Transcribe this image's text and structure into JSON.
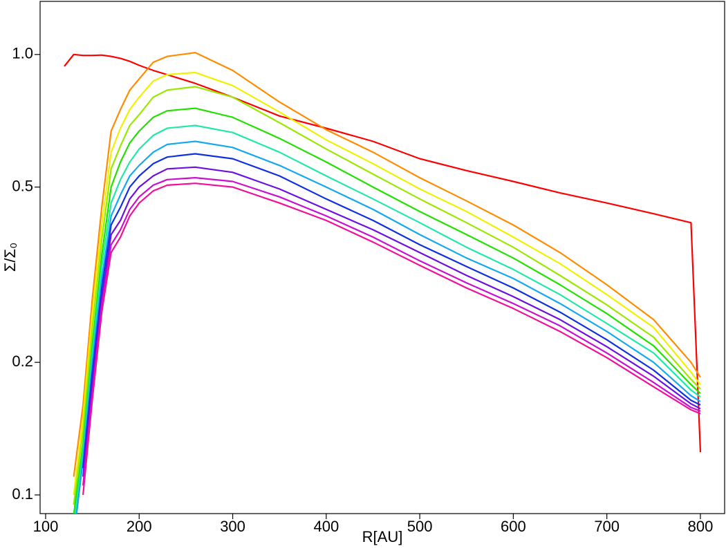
{
  "chart_data": {
    "type": "line",
    "xlabel": "R[AU]",
    "ylabel": "Σ/Σ₀",
    "ylog": true,
    "x": [
      120,
      130,
      140,
      150,
      160,
      170,
      180,
      190,
      200,
      215,
      230,
      260,
      300,
      350,
      400,
      450,
      500,
      550,
      600,
      650,
      700,
      750,
      790,
      800
    ],
    "xlim": [
      94.1,
      825.9
    ],
    "xticks": [
      100,
      200,
      300,
      400,
      500,
      600,
      700,
      800
    ],
    "ylim": [
      0.0907,
      1.32
    ],
    "yticks": [
      0.1,
      0.2,
      0.5,
      {
        "value": 1,
        "label": "1.0"
      }
    ],
    "series": [
      {
        "color": "#ff0000",
        "values": [
          0.94,
          1.0,
          0.995,
          0.995,
          0.997,
          0.99,
          0.98,
          0.965,
          0.945,
          0.92,
          0.9,
          0.86,
          0.8,
          0.725,
          0.68,
          0.635,
          0.58,
          0.545,
          0.515,
          0.485,
          0.46,
          0.435,
          0.415,
          0.125
        ]
      },
      {
        "color": "#ff8c00",
        "values": [
          null,
          0.11,
          0.16,
          0.28,
          0.45,
          0.67,
          0.75,
          0.83,
          0.88,
          0.96,
          0.99,
          1.01,
          0.92,
          0.78,
          0.675,
          0.6,
          0.525,
          0.465,
          0.41,
          0.355,
          0.3,
          0.25,
          0.2,
          0.185
        ]
      },
      {
        "color": "#f0f000",
        "values": [
          null,
          0.1,
          0.15,
          0.26,
          0.41,
          0.6,
          0.68,
          0.75,
          0.8,
          0.87,
          0.9,
          0.91,
          0.85,
          0.74,
          0.64,
          0.565,
          0.495,
          0.44,
          0.385,
          0.335,
          0.285,
          0.24,
          0.19,
          0.178
        ]
      },
      {
        "color": "#9ae800",
        "values": [
          null,
          0.095,
          0.14,
          0.24,
          0.38,
          0.55,
          0.62,
          0.69,
          0.73,
          0.8,
          0.83,
          0.845,
          0.8,
          0.7,
          0.61,
          0.535,
          0.47,
          0.415,
          0.365,
          0.315,
          0.27,
          0.228,
          0.183,
          0.174
        ]
      },
      {
        "color": "#22e000",
        "values": [
          null,
          0.09,
          0.13,
          0.22,
          0.35,
          0.5,
          0.57,
          0.63,
          0.67,
          0.72,
          0.745,
          0.755,
          0.72,
          0.645,
          0.57,
          0.5,
          0.44,
          0.39,
          0.345,
          0.3,
          0.258,
          0.218,
          0.178,
          0.17
        ]
      },
      {
        "color": "#20e8a8",
        "values": [
          null,
          0.085,
          0.125,
          0.21,
          0.33,
          0.46,
          0.52,
          0.57,
          0.61,
          0.655,
          0.68,
          0.69,
          0.665,
          0.6,
          0.53,
          0.47,
          0.415,
          0.365,
          0.325,
          0.285,
          0.245,
          0.21,
          0.173,
          0.167
        ]
      },
      {
        "color": "#14a8f0",
        "values": [
          null,
          0.08,
          0.12,
          0.2,
          0.31,
          0.43,
          0.48,
          0.53,
          0.56,
          0.6,
          0.625,
          0.635,
          0.615,
          0.56,
          0.5,
          0.445,
          0.39,
          0.345,
          0.31,
          0.272,
          0.235,
          0.2,
          0.168,
          0.163
        ]
      },
      {
        "color": "#1030e0",
        "values": [
          null,
          null,
          0.115,
          0.19,
          0.295,
          0.41,
          0.45,
          0.5,
          0.53,
          0.565,
          0.585,
          0.595,
          0.58,
          0.53,
          0.47,
          0.42,
          0.37,
          0.33,
          0.295,
          0.26,
          0.225,
          0.192,
          0.164,
          0.16
        ]
      },
      {
        "color": "#6a10e0",
        "values": [
          null,
          null,
          0.11,
          0.18,
          0.28,
          0.39,
          0.42,
          0.47,
          0.5,
          0.53,
          0.55,
          0.555,
          0.54,
          0.495,
          0.445,
          0.4,
          0.355,
          0.315,
          0.282,
          0.25,
          0.217,
          0.186,
          0.161,
          0.157
        ]
      },
      {
        "color": "#c810d0",
        "values": [
          null,
          null,
          0.105,
          0.17,
          0.27,
          0.37,
          0.4,
          0.445,
          0.475,
          0.505,
          0.52,
          0.525,
          0.515,
          0.475,
          0.43,
          0.385,
          0.34,
          0.303,
          0.272,
          0.242,
          0.21,
          0.18,
          0.158,
          0.155
        ]
      },
      {
        "color": "#f0109a",
        "values": [
          null,
          null,
          0.1,
          0.165,
          0.26,
          0.355,
          0.385,
          0.43,
          0.46,
          0.49,
          0.505,
          0.51,
          0.5,
          0.46,
          0.42,
          0.375,
          0.332,
          0.295,
          0.265,
          0.235,
          0.205,
          0.176,
          0.156,
          0.153
        ]
      }
    ]
  }
}
